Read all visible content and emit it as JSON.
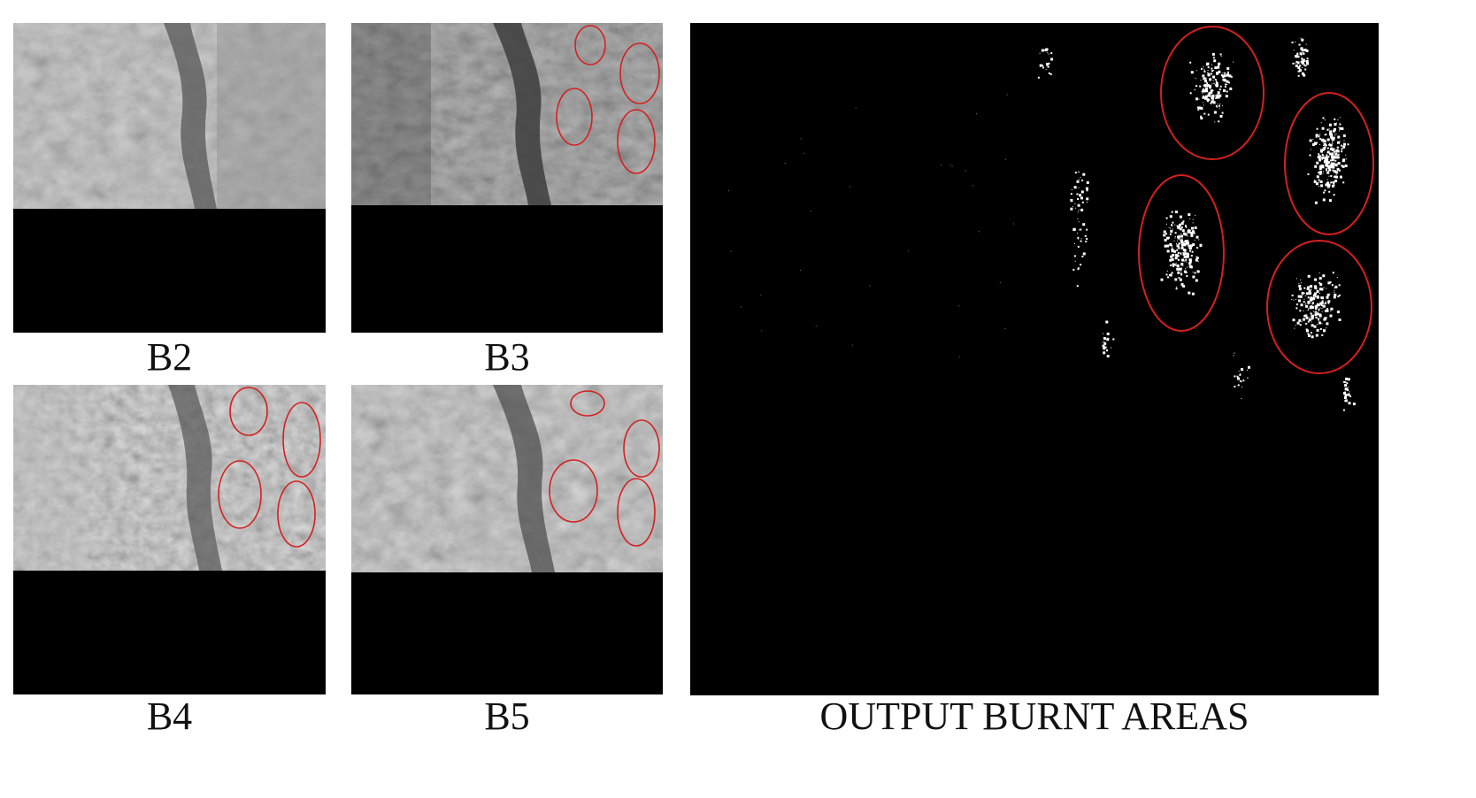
{
  "panels": [
    {
      "id": "b2",
      "label": "B2"
    },
    {
      "id": "b3",
      "label": "B3"
    },
    {
      "id": "b4",
      "label": "B4"
    },
    {
      "id": "b5",
      "label": "B5"
    }
  ],
  "output": {
    "label": "OUTPUT BURNT AREAS"
  },
  "colors": {
    "background": "#ffffff",
    "image_black": "#000000",
    "highlight_ellipse": "#d42020",
    "burnt_pixels": "#ffffff"
  }
}
